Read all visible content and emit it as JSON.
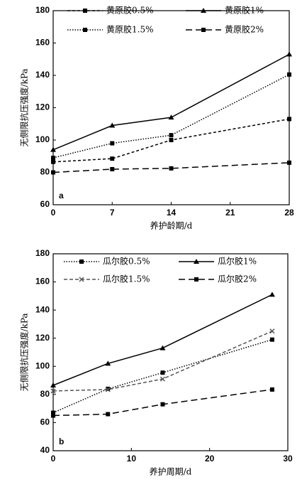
{
  "chart_data": [
    {
      "type": "line",
      "annotation": "a",
      "x_label": "养护龄期/d",
      "y_label": "无侧限抗压强度/kPa",
      "x": [
        0,
        7,
        14,
        28
      ],
      "xlim": [
        0,
        28
      ],
      "xticks": [
        0,
        7,
        14,
        21,
        28
      ],
      "ylim": [
        60,
        180
      ],
      "yticks": [
        60,
        80,
        100,
        120,
        140,
        160,
        180
      ],
      "series": [
        {
          "name": "黄原胶0.5%",
          "color": "#000000",
          "dash": "4,3",
          "marker": "square",
          "values": [
            86.5,
            88.5,
            100,
            113
          ]
        },
        {
          "name": "黄原胶1%",
          "color": "#000000",
          "dash": "none",
          "marker": "triangle",
          "values": [
            94,
            109,
            114,
            153
          ]
        },
        {
          "name": "黄原胶1.5%",
          "color": "#000000",
          "dash": "1.5,2",
          "marker": "square",
          "values": [
            89,
            98,
            103,
            140.5
          ]
        },
        {
          "name": "黄原胶2%",
          "color": "#000000",
          "dash": "9,5",
          "marker": "square",
          "values": [
            80,
            82,
            82.5,
            86
          ]
        }
      ]
    },
    {
      "type": "line",
      "annotation": "b",
      "x_label": "养护周期/d",
      "y_label": "无侧限抗压强度/kPa",
      "x": [
        0,
        7,
        14,
        28
      ],
      "xlim": [
        0,
        30
      ],
      "xticks": [
        0,
        10,
        20,
        30
      ],
      "ylim": [
        40,
        180
      ],
      "yticks": [
        40,
        60,
        80,
        100,
        120,
        140,
        160,
        180
      ],
      "series": [
        {
          "name": "瓜尔胶0.5%",
          "color": "#000000",
          "dash": "1.5,2",
          "marker": "square",
          "values": [
            67,
            84,
            95.5,
            119
          ]
        },
        {
          "name": "瓜尔胶1%",
          "color": "#000000",
          "dash": "none",
          "marker": "triangle",
          "values": [
            86.5,
            102,
            113,
            151
          ]
        },
        {
          "name": "瓜尔胶1.5%",
          "color": "#555555",
          "dash": "5,3",
          "marker": "cross",
          "values": [
            82.5,
            83.5,
            91,
            125
          ]
        },
        {
          "name": "瓜尔胶2%",
          "color": "#000000",
          "dash": "9,5",
          "marker": "square",
          "values": [
            65,
            66,
            73,
            83.5
          ]
        }
      ]
    }
  ]
}
